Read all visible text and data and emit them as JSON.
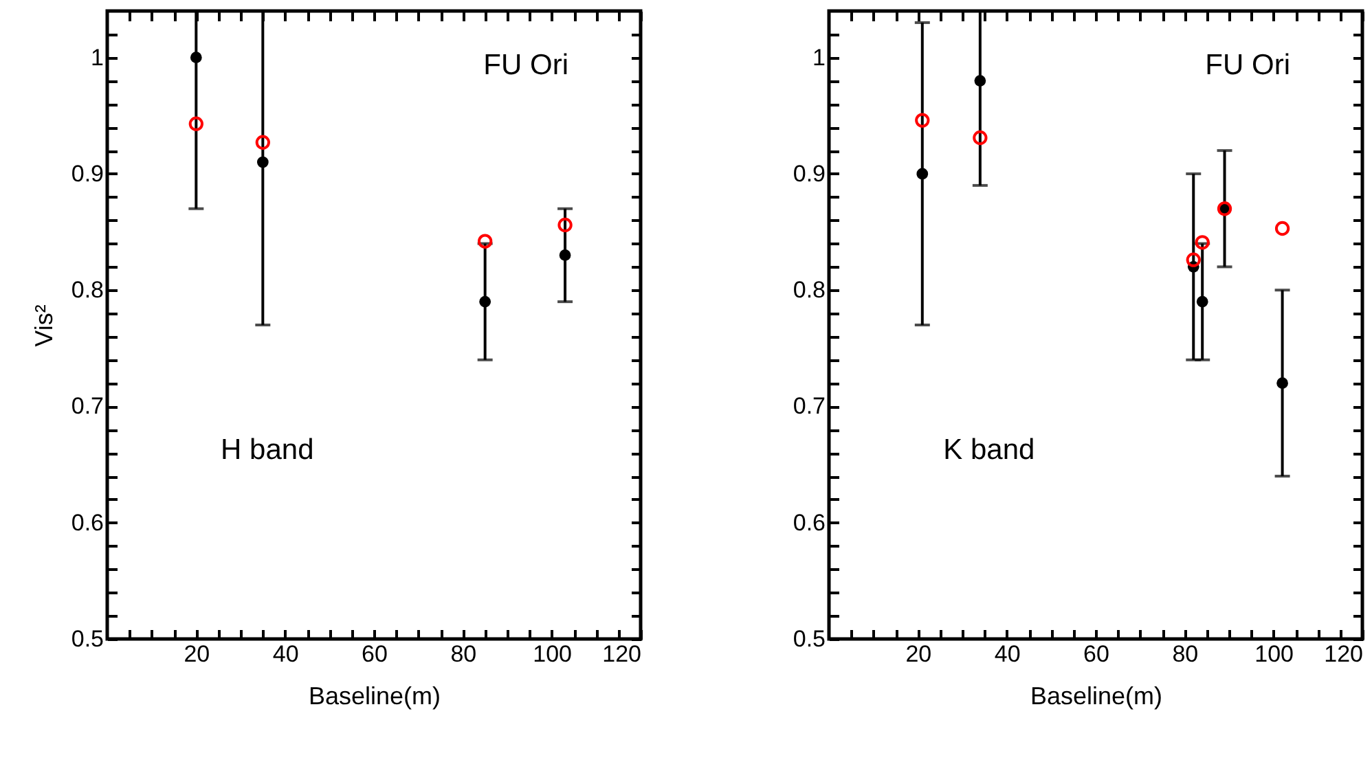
{
  "chart_data": [
    {
      "type": "scatter",
      "xlabel": "Baseline(m)",
      "ylabel": "Vis²",
      "annotations": [
        "FU Ori",
        "H band"
      ],
      "xlim": [
        0,
        120
      ],
      "ylim": [
        0.5,
        1.04
      ],
      "xticks": [
        {
          "value": 5,
          "label": null
        },
        {
          "value": 10,
          "label": null
        },
        {
          "value": 15,
          "label": null
        },
        20,
        {
          "value": 25,
          "label": null
        },
        {
          "value": 30,
          "label": null
        },
        {
          "value": 35,
          "label": null
        },
        40,
        {
          "value": 45,
          "label": null
        },
        {
          "value": 50,
          "label": null
        },
        {
          "value": 55,
          "label": null
        },
        60,
        {
          "value": 65,
          "label": null
        },
        {
          "value": 70,
          "label": null
        },
        {
          "value": 75,
          "label": null
        },
        80,
        {
          "value": 85,
          "label": null
        },
        {
          "value": 90,
          "label": null
        },
        {
          "value": 95,
          "label": null
        },
        100,
        {
          "value": 105,
          "label": null
        },
        {
          "value": 110,
          "label": null
        },
        {
          "value": 115,
          "label": null
        },
        120
      ],
      "yticks": [
        0.5,
        {
          "value": 0.52,
          "label": null
        },
        {
          "value": 0.54,
          "label": null
        },
        {
          "value": 0.56,
          "label": null
        },
        {
          "value": 0.58,
          "label": null
        },
        0.6,
        {
          "value": 0.62,
          "label": null
        },
        {
          "value": 0.64,
          "label": null
        },
        {
          "value": 0.66,
          "label": null
        },
        {
          "value": 0.68,
          "label": null
        },
        0.7,
        {
          "value": 0.72,
          "label": null
        },
        {
          "value": 0.74,
          "label": null
        },
        {
          "value": 0.76,
          "label": null
        },
        {
          "value": 0.78,
          "label": null
        },
        0.8,
        {
          "value": 0.82,
          "label": null
        },
        {
          "value": 0.84,
          "label": null
        },
        {
          "value": 0.86,
          "label": null
        },
        {
          "value": 0.88,
          "label": null
        },
        0.9,
        {
          "value": 0.92,
          "label": null
        },
        {
          "value": 0.94,
          "label": null
        },
        {
          "value": 0.96,
          "label": null
        },
        {
          "value": 0.98,
          "label": null
        },
        1,
        {
          "value": 1.02,
          "label": null
        }
      ],
      "marker": "circle",
      "grid": false,
      "series": [
        {
          "color": "#000000",
          "x": [
            20,
            35,
            85,
            103
          ],
          "values": [
            1.0,
            0.91,
            0.79,
            0.83
          ],
          "errors": [
            [
              0.87,
              1.04
            ],
            [
              0.77,
              1.04
            ],
            [
              0.74,
              0.84
            ],
            [
              0.79,
              0.87
            ]
          ]
        },
        {
          "color": "#ff0000",
          "x": [
            20,
            35,
            85,
            103
          ],
          "values": [
            0.943,
            0.927,
            0.842,
            0.856
          ]
        }
      ]
    },
    {
      "type": "scatter",
      "xlabel": "Baseline(m)",
      "annotations": [
        "FU Ori",
        "K band"
      ],
      "xlim": [
        0,
        120
      ],
      "ylim": [
        0.5,
        1.04
      ],
      "xticks": [
        {
          "value": 5,
          "label": null
        },
        {
          "value": 10,
          "label": null
        },
        {
          "value": 15,
          "label": null
        },
        20,
        {
          "value": 25,
          "label": null
        },
        {
          "value": 30,
          "label": null
        },
        {
          "value": 35,
          "label": null
        },
        40,
        {
          "value": 45,
          "label": null
        },
        {
          "value": 50,
          "label": null
        },
        {
          "value": 55,
          "label": null
        },
        60,
        {
          "value": 65,
          "label": null
        },
        {
          "value": 70,
          "label": null
        },
        {
          "value": 75,
          "label": null
        },
        80,
        {
          "value": 85,
          "label": null
        },
        {
          "value": 90,
          "label": null
        },
        {
          "value": 95,
          "label": null
        },
        100,
        {
          "value": 105,
          "label": null
        },
        {
          "value": 110,
          "label": null
        },
        {
          "value": 115,
          "label": null
        },
        120
      ],
      "yticks": [
        0.5,
        {
          "value": 0.52,
          "label": null
        },
        {
          "value": 0.54,
          "label": null
        },
        {
          "value": 0.56,
          "label": null
        },
        {
          "value": 0.58,
          "label": null
        },
        0.6,
        {
          "value": 0.62,
          "label": null
        },
        {
          "value": 0.64,
          "label": null
        },
        {
          "value": 0.66,
          "label": null
        },
        {
          "value": 0.68,
          "label": null
        },
        0.7,
        {
          "value": 0.72,
          "label": null
        },
        {
          "value": 0.74,
          "label": null
        },
        {
          "value": 0.76,
          "label": null
        },
        {
          "value": 0.78,
          "label": null
        },
        0.8,
        {
          "value": 0.82,
          "label": null
        },
        {
          "value": 0.84,
          "label": null
        },
        {
          "value": 0.86,
          "label": null
        },
        {
          "value": 0.88,
          "label": null
        },
        0.9,
        {
          "value": 0.92,
          "label": null
        },
        {
          "value": 0.94,
          "label": null
        },
        {
          "value": 0.96,
          "label": null
        },
        {
          "value": 0.98,
          "label": null
        },
        1,
        {
          "value": 1.02,
          "label": null
        }
      ],
      "marker": "circle",
      "grid": false,
      "series": [
        {
          "color": "#000000",
          "x": [
            21,
            34,
            82,
            84,
            89,
            102
          ],
          "values": [
            0.9,
            0.98,
            0.82,
            0.79,
            0.87,
            0.72
          ],
          "errors": [
            [
              0.77,
              1.03
            ],
            [
              0.89,
              1.04
            ],
            [
              0.74,
              0.9
            ],
            [
              0.74,
              0.84
            ],
            [
              0.82,
              0.92
            ],
            [
              0.64,
              0.8
            ]
          ]
        },
        {
          "color": "#ff0000",
          "x": [
            21,
            34,
            82,
            84,
            89,
            102
          ],
          "values": [
            0.946,
            0.931,
            0.826,
            0.841,
            0.87,
            0.853
          ]
        }
      ]
    }
  ]
}
